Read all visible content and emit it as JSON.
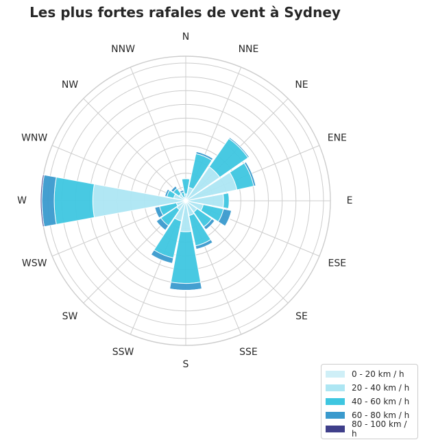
{
  "chart_data": {
    "type": "windrose",
    "title": "Les plus fortes rafales de vent à Sydney",
    "directions": [
      "N",
      "NNE",
      "NE",
      "ENE",
      "E",
      "ESE",
      "SE",
      "SSE",
      "S",
      "SSW",
      "SW",
      "WSW",
      "W",
      "WNW",
      "NW",
      "NNW"
    ],
    "r_max": 210,
    "r_rings": [
      20,
      40,
      60,
      80,
      100,
      120,
      140,
      160,
      180,
      200
    ],
    "grid": true,
    "legend_position": "lower-right",
    "series": [
      {
        "name": "0 - 20 km / h",
        "color": "#cfeff7",
        "values": [
          0,
          0,
          0,
          0,
          0,
          0,
          0,
          0,
          0,
          0,
          0,
          0,
          0,
          0,
          0,
          0
        ]
      },
      {
        "name": "20 - 40 km / h",
        "color": "#ade6f3",
        "values": [
          10,
          20,
          60,
          76,
          55,
          26,
          20,
          22,
          45,
          30,
          16,
          14,
          135,
          18,
          12,
          5
        ]
      },
      {
        "name": "40 - 60 km / h",
        "color": "#3ec6e0",
        "values": [
          22,
          50,
          50,
          25,
          8,
          30,
          26,
          45,
          75,
          55,
          28,
          25,
          56,
          10,
          10,
          8
        ]
      },
      {
        "name": "60 - 80 km / h",
        "color": "#3a9acd",
        "values": [
          0,
          3,
          2,
          3,
          0,
          12,
          5,
          5,
          10,
          8,
          8,
          7,
          18,
          3,
          4,
          3
        ]
      },
      {
        "name": "80 - 100 km / h",
        "color": "#3f3f8a",
        "values": [
          0,
          0,
          0,
          0,
          0,
          1,
          0,
          0,
          1,
          0,
          0,
          0,
          2,
          0,
          1,
          0
        ]
      }
    ]
  }
}
